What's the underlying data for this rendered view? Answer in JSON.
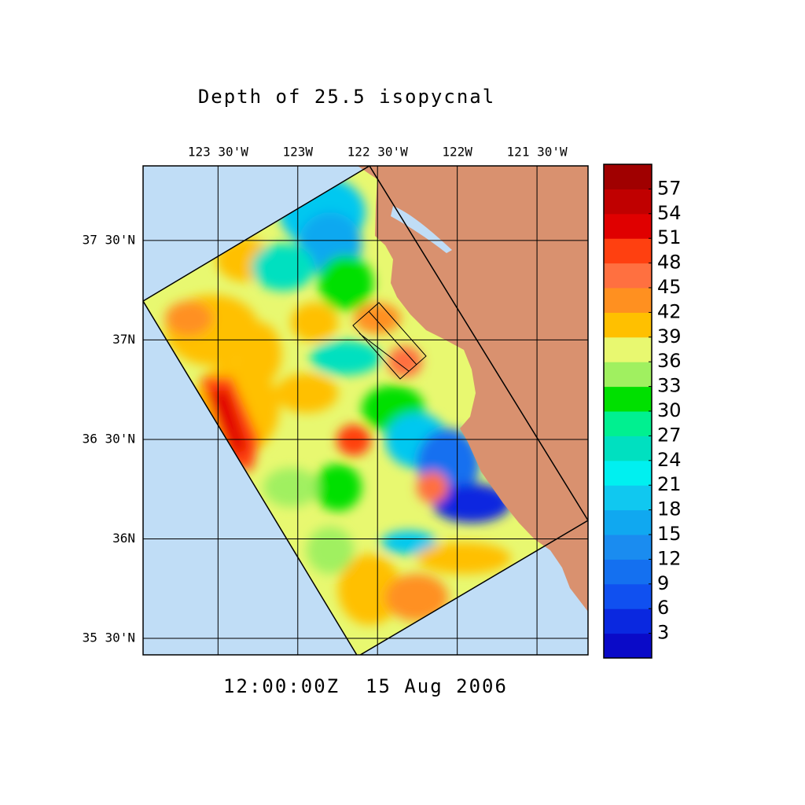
{
  "title": "Depth of 25.5 isopycnal",
  "map": {
    "lon_range": [
      -123.97,
      -121.18
    ],
    "lat_range": [
      35.417,
      37.875
    ],
    "lon_ticks": [
      {
        "value": -123.5,
        "label": "123 30'W"
      },
      {
        "value": -123,
        "label": "123W"
      },
      {
        "value": -122.5,
        "label": "122 30'W"
      },
      {
        "value": -122,
        "label": "122W"
      },
      {
        "value": -121.5,
        "label": "121 30'W"
      }
    ],
    "lat_ticks": [
      {
        "value": 37.5,
        "label": "37 30'N"
      },
      {
        "value": 37,
        "label": "37N"
      },
      {
        "value": 36.5,
        "label": "36 30'N"
      },
      {
        "value": 36,
        "label": "36N"
      },
      {
        "value": 35.5,
        "label": "35 30'N"
      }
    ]
  },
  "colorbar": {
    "range": [
      0,
      60
    ],
    "levels": [
      3,
      6,
      9,
      12,
      15,
      18,
      21,
      24,
      27,
      30,
      33,
      36,
      39,
      42,
      45,
      48,
      51,
      54,
      57
    ],
    "colors": [
      "#0a0ac8",
      "#0a28e0",
      "#1050f0",
      "#1470f0",
      "#1a8cf0",
      "#10a8f0",
      "#10c8f0",
      "#00f0f0",
      "#00e0c0",
      "#00f090",
      "#00e000",
      "#a0f060",
      "#e8f870",
      "#ffc000",
      "#ff9020",
      "#ff7040",
      "#ff4010",
      "#e00000",
      "#c00000",
      "#a00000"
    ]
  },
  "time_label": "12:00:00Z  15 Aug 2006"
}
